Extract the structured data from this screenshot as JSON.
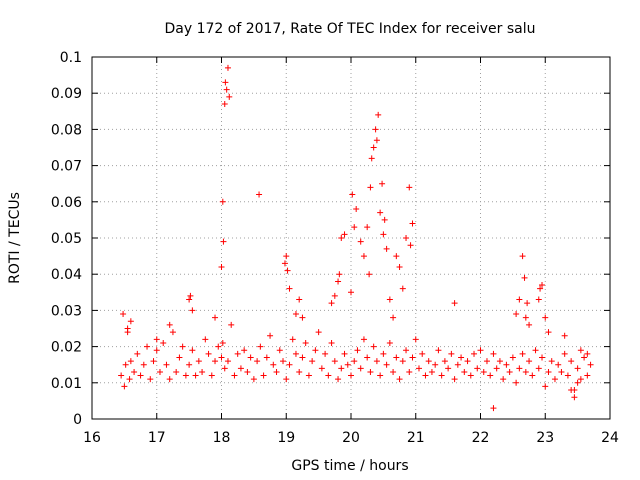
{
  "chart_data": {
    "type": "scatter",
    "title": "Day 172 of 2017, Rate Of TEC Index for receiver salu",
    "xlabel": "GPS time / hours",
    "ylabel": "ROTI / TECUs",
    "xlim": [
      16,
      24
    ],
    "ylim": [
      0,
      0.1
    ],
    "x_ticks": [
      "16",
      "17",
      "18",
      "19",
      "20",
      "21",
      "22",
      "23",
      "24"
    ],
    "y_ticks": [
      "0",
      "0.01",
      "0.02",
      "0.03",
      "0.04",
      "0.05",
      "0.06",
      "0.07",
      "0.08",
      "0.09",
      "0.1"
    ],
    "grid": true,
    "marker": "+",
    "colors": {
      "series": "#ff0000",
      "grid": "#a0a0a0",
      "axis": "#000000"
    },
    "series": [
      {
        "name": "ROTI",
        "x": [
          16.45,
          16.5,
          16.52,
          16.55,
          16.58,
          16.6,
          16.65,
          16.7,
          16.75,
          16.8,
          16.85,
          16.9,
          16.95,
          17.0,
          17.05,
          17.1,
          17.15,
          17.2,
          17.25,
          17.3,
          17.35,
          17.4,
          17.45,
          17.5,
          17.55,
          17.6,
          17.65,
          17.7,
          17.75,
          17.8,
          17.85,
          17.9,
          17.95,
          18.0,
          18.02,
          18.05,
          18.1,
          18.15,
          18.2,
          18.25,
          18.3,
          18.35,
          18.4,
          18.45,
          18.5,
          18.55,
          18.6,
          18.65,
          18.7,
          18.75,
          18.8,
          18.85,
          18.9,
          18.95,
          19.0,
          19.05,
          19.1,
          19.15,
          19.2,
          19.25,
          19.3,
          19.35,
          19.4,
          19.45,
          19.5,
          19.55,
          19.6,
          19.65,
          19.7,
          19.75,
          19.8,
          19.85,
          19.9,
          19.95,
          20.0,
          20.05,
          20.1,
          20.15,
          20.2,
          20.25,
          20.3,
          20.35,
          20.4,
          20.45,
          20.5,
          20.55,
          20.6,
          20.65,
          20.7,
          20.75,
          20.8,
          20.85,
          20.9,
          20.95,
          21.0,
          21.05,
          21.1,
          21.15,
          21.2,
          21.25,
          21.3,
          21.35,
          21.4,
          21.45,
          21.5,
          21.55,
          21.6,
          21.65,
          21.7,
          21.75,
          21.8,
          21.85,
          21.9,
          21.95,
          22.0,
          22.05,
          22.1,
          22.15,
          22.2,
          22.25,
          22.3,
          22.35,
          22.4,
          22.45,
          22.5,
          22.55,
          22.6,
          22.65,
          22.7,
          22.75,
          22.8,
          22.85,
          22.9,
          22.95,
          23.0,
          23.05,
          23.1,
          23.15,
          23.2,
          23.25,
          23.3,
          23.35,
          23.4,
          23.45,
          23.5,
          23.55,
          23.6,
          23.65,
          23.7,
          16.48,
          16.55,
          16.6,
          17.0,
          17.2,
          17.5,
          17.52,
          17.55,
          17.9,
          18.0,
          18.02,
          18.03,
          18.05,
          18.06,
          18.08,
          18.1,
          18.12,
          18.58,
          18.98,
          19.0,
          19.02,
          19.05,
          19.15,
          19.2,
          19.25,
          19.7,
          19.75,
          19.8,
          19.82,
          19.85,
          19.9,
          20.0,
          20.02,
          20.05,
          20.08,
          20.15,
          20.2,
          20.25,
          20.28,
          20.3,
          20.32,
          20.35,
          20.38,
          20.4,
          20.42,
          20.45,
          20.48,
          20.5,
          20.52,
          20.55,
          20.6,
          20.65,
          20.7,
          20.75,
          20.8,
          20.85,
          20.9,
          20.92,
          20.95,
          21.6,
          22.2,
          22.55,
          22.6,
          22.65,
          22.68,
          22.7,
          22.72,
          22.75,
          22.9,
          22.92,
          22.95,
          23.0,
          23.05,
          23.3,
          23.4,
          23.45,
          23.5,
          23.55,
          23.65
        ],
        "y": [
          0.012,
          0.009,
          0.015,
          0.024,
          0.011,
          0.016,
          0.013,
          0.018,
          0.012,
          0.015,
          0.02,
          0.011,
          0.016,
          0.019,
          0.013,
          0.021,
          0.015,
          0.011,
          0.024,
          0.013,
          0.017,
          0.02,
          0.012,
          0.015,
          0.019,
          0.012,
          0.016,
          0.013,
          0.022,
          0.018,
          0.012,
          0.016,
          0.02,
          0.017,
          0.021,
          0.014,
          0.016,
          0.026,
          0.012,
          0.018,
          0.014,
          0.019,
          0.013,
          0.017,
          0.011,
          0.016,
          0.02,
          0.012,
          0.017,
          0.023,
          0.015,
          0.013,
          0.019,
          0.016,
          0.011,
          0.015,
          0.022,
          0.018,
          0.013,
          0.017,
          0.021,
          0.012,
          0.016,
          0.019,
          0.024,
          0.014,
          0.018,
          0.012,
          0.021,
          0.016,
          0.011,
          0.014,
          0.018,
          0.015,
          0.012,
          0.016,
          0.019,
          0.014,
          0.022,
          0.017,
          0.013,
          0.02,
          0.016,
          0.012,
          0.018,
          0.015,
          0.021,
          0.013,
          0.017,
          0.011,
          0.016,
          0.019,
          0.013,
          0.017,
          0.022,
          0.014,
          0.018,
          0.012,
          0.016,
          0.013,
          0.015,
          0.019,
          0.012,
          0.016,
          0.014,
          0.018,
          0.011,
          0.015,
          0.017,
          0.013,
          0.016,
          0.012,
          0.018,
          0.014,
          0.019,
          0.013,
          0.016,
          0.012,
          0.018,
          0.014,
          0.016,
          0.011,
          0.015,
          0.013,
          0.017,
          0.01,
          0.014,
          0.018,
          0.013,
          0.016,
          0.012,
          0.019,
          0.014,
          0.017,
          0.009,
          0.013,
          0.016,
          0.011,
          0.015,
          0.013,
          0.018,
          0.012,
          0.016,
          0.008,
          0.014,
          0.011,
          0.017,
          0.012,
          0.015,
          0.029,
          0.025,
          0.027,
          0.022,
          0.026,
          0.033,
          0.034,
          0.03,
          0.028,
          0.042,
          0.06,
          0.049,
          0.087,
          0.093,
          0.091,
          0.097,
          0.089,
          0.062,
          0.043,
          0.045,
          0.041,
          0.036,
          0.029,
          0.033,
          0.028,
          0.032,
          0.034,
          0.038,
          0.04,
          0.05,
          0.051,
          0.035,
          0.062,
          0.053,
          0.058,
          0.049,
          0.045,
          0.053,
          0.04,
          0.064,
          0.072,
          0.075,
          0.08,
          0.077,
          0.084,
          0.057,
          0.065,
          0.051,
          0.055,
          0.047,
          0.033,
          0.028,
          0.045,
          0.042,
          0.036,
          0.05,
          0.064,
          0.048,
          0.054,
          0.032,
          0.003,
          0.029,
          0.033,
          0.045,
          0.039,
          0.028,
          0.032,
          0.026,
          0.033,
          0.036,
          0.037,
          0.028,
          0.024,
          0.023,
          0.008,
          0.006,
          0.01,
          0.019,
          0.018
        ]
      }
    ]
  }
}
